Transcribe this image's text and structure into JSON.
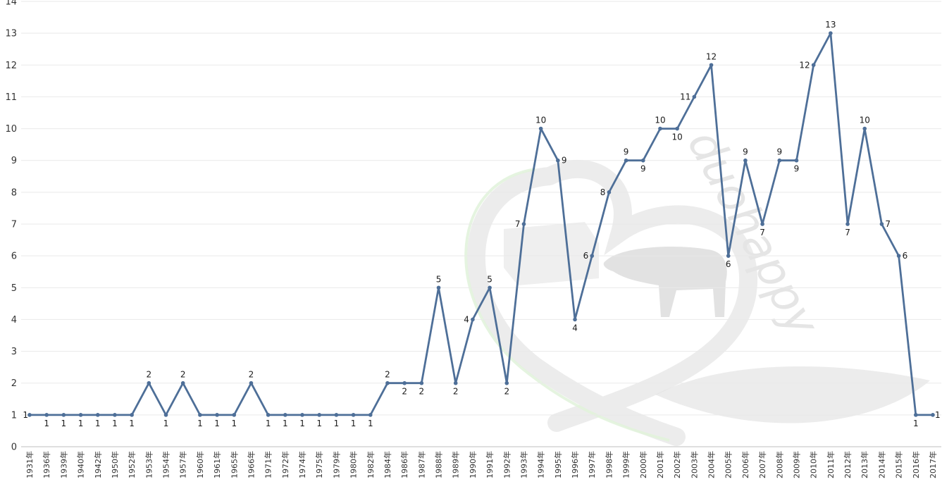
{
  "chart_data": {
    "type": "line",
    "title": "",
    "xlabel": "",
    "ylabel": "",
    "ylim": [
      0,
      14
    ],
    "yticks": [
      0,
      1,
      2,
      3,
      4,
      5,
      6,
      7,
      8,
      9,
      10,
      11,
      12,
      13,
      14
    ],
    "grid": true,
    "legend": "none",
    "color": "#4e6f98",
    "categories": [
      "1931年",
      "1936年",
      "1939年",
      "1940年",
      "1942年",
      "1950年",
      "1952年",
      "1953年",
      "1954年",
      "1957年",
      "1960年",
      "1961年",
      "1965年",
      "1966年",
      "1971年",
      "1972年",
      "1974年",
      "1975年",
      "1979年",
      "1980年",
      "1982年",
      "1984年",
      "1986年",
      "1987年",
      "1988年",
      "1989年",
      "1990年",
      "1991年",
      "1992年",
      "1993年",
      "1994年",
      "1995年",
      "1996年",
      "1997年",
      "1998年",
      "1999年",
      "2000年",
      "2001年",
      "2002年",
      "2003年",
      "2004年",
      "2005年",
      "2006年",
      "2007年",
      "2008年",
      "2009年",
      "2010年",
      "2011年",
      "2012年",
      "2013年",
      "2014年",
      "2015年",
      "2016年",
      "2017年"
    ],
    "values": [
      1,
      1,
      1,
      1,
      1,
      1,
      1,
      2,
      1,
      2,
      1,
      1,
      1,
      2,
      1,
      1,
      1,
      1,
      1,
      1,
      1,
      2,
      2,
      2,
      5,
      2,
      4,
      5,
      2,
      7,
      10,
      9,
      4,
      6,
      8,
      9,
      9,
      10,
      10,
      11,
      12,
      6,
      9,
      7,
      9,
      9,
      12,
      13,
      7,
      10,
      7,
      6,
      1,
      1
    ]
  },
  "watermark": {
    "text": "duohappy",
    "color": "#e2e2e2"
  }
}
